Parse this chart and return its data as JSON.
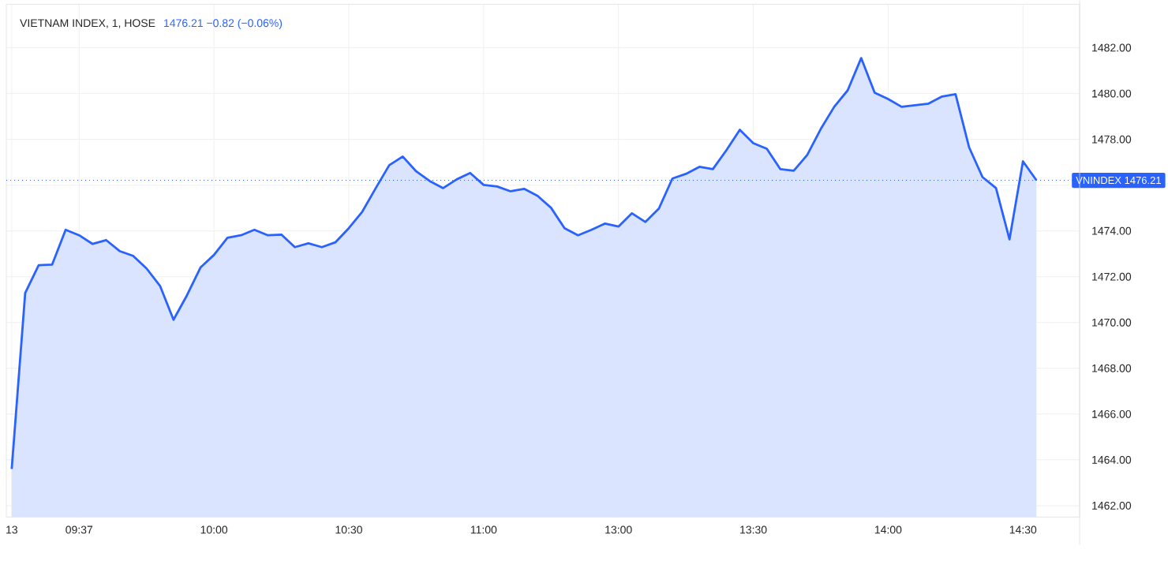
{
  "chart_data": {
    "type": "area",
    "title": "VIETNAM INDEX, 1, HOSE",
    "subtitle": "1476.21  −0.82 (−0.06%)",
    "categories": [
      "13",
      null,
      null,
      null,
      null,
      "09:37",
      null,
      null,
      null,
      null,
      null,
      null,
      null,
      null,
      null,
      "10:00",
      null,
      null,
      null,
      null,
      null,
      null,
      null,
      null,
      null,
      "10:30",
      null,
      null,
      null,
      null,
      null,
      null,
      null,
      null,
      null,
      "11:00",
      null,
      null,
      null,
      null,
      null,
      null,
      null,
      null,
      null,
      "13:00",
      null,
      null,
      null,
      null,
      null,
      null,
      null,
      null,
      null,
      "13:30",
      null,
      null,
      null,
      null,
      null,
      null,
      null,
      null,
      null,
      "14:00",
      null,
      null,
      null,
      null,
      null,
      null,
      null,
      null,
      null,
      "14:30",
      null
    ],
    "series": [
      {
        "color": "#2962ff",
        "values": [
          1463.6,
          1471.29,
          1472.5,
          1472.53,
          1474.05,
          1473.81,
          1473.43,
          1473.6,
          1473.12,
          1472.91,
          1472.36,
          1471.6,
          1470.12,
          1471.19,
          1472.4,
          1472.95,
          1473.7,
          1473.81,
          1474.05,
          1473.81,
          1473.84,
          1473.29,
          1473.46,
          1473.29,
          1473.5,
          1474.12,
          1474.84,
          1475.87,
          1476.87,
          1477.25,
          1476.6,
          1476.18,
          1475.87,
          1476.25,
          1476.53,
          1476.01,
          1475.94,
          1475.73,
          1475.84,
          1475.53,
          1475.01,
          1474.12,
          1473.81,
          1474.05,
          1474.32,
          1474.19,
          1474.77,
          1474.39,
          1474.98,
          1476.29,
          1476.49,
          1476.8,
          1476.7,
          1477.52,
          1478.42,
          1477.83,
          1477.59,
          1476.7,
          1476.63,
          1477.32,
          1478.45,
          1479.42,
          1480.14,
          1481.55,
          1480.04,
          1479.76,
          1479.42,
          1479.49,
          1479.56,
          1479.87,
          1479.97,
          1477.66,
          1476.35,
          1475.87,
          1473.63,
          1477.04,
          1476.21
        ]
      }
    ],
    "ylim": [
      1461.5,
      1483.9
    ],
    "yticks": [
      {
        "value": 1462,
        "label": "1462.00"
      },
      {
        "value": 1464,
        "label": "1464.00"
      },
      {
        "value": 1466,
        "label": "1466.00"
      },
      {
        "value": 1468,
        "label": "1468.00"
      },
      {
        "value": 1470,
        "label": "1470.00"
      },
      {
        "value": 1472,
        "label": "1472.00"
      },
      {
        "value": 1474,
        "label": "1474.00"
      },
      {
        "value": 1476,
        "label": null
      },
      {
        "value": 1478,
        "label": "1478.00"
      },
      {
        "value": 1480,
        "label": "1480.00"
      },
      {
        "value": 1482,
        "label": "1482.00"
      }
    ],
    "grid": true,
    "ref_lines": [
      {
        "axis": "y",
        "value": 1476.21,
        "label": "VNINDEX 1476.21",
        "color": "#2962ff",
        "line_style": "dotted"
      }
    ]
  }
}
